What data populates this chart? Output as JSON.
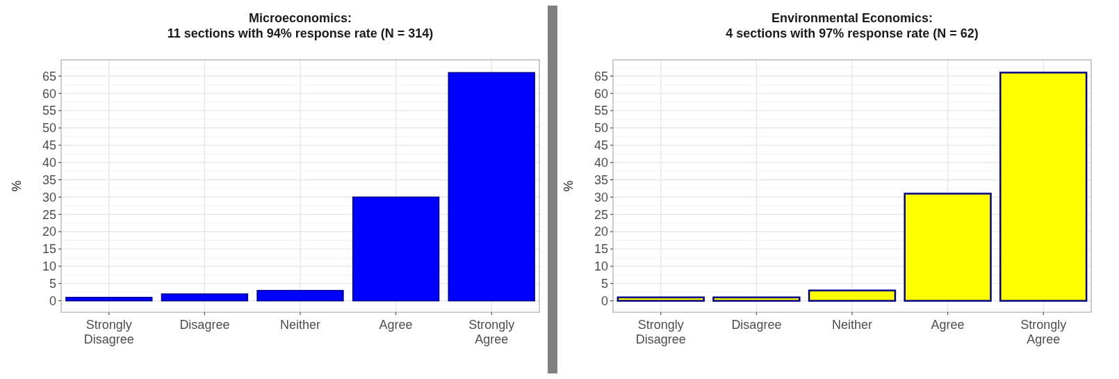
{
  "chart_data": [
    {
      "type": "bar",
      "title": "Microeconomics:\n11 sections with 94% response rate (N = 314)",
      "ylabel": "%",
      "categories": [
        "Strongly\nDisagree",
        "Disagree",
        "Neither",
        "Agree",
        "Strongly\nAgree"
      ],
      "values": [
        1,
        2,
        3,
        30,
        66
      ],
      "color": "#0000ff",
      "ylim": [
        -3.3,
        69.7
      ],
      "yticks": [
        0,
        5,
        10,
        15,
        20,
        25,
        30,
        35,
        40,
        45,
        50,
        55,
        60,
        65
      ],
      "grid": true
    },
    {
      "type": "bar",
      "title": "Environmental Economics:\n4 sections with 97% response rate (N = 62)",
      "ylabel": "%",
      "categories": [
        "Strongly\nDisagree",
        "Disagree",
        "Neither",
        "Agree",
        "Strongly\nAgree"
      ],
      "values": [
        1,
        1,
        3,
        31,
        66
      ],
      "color": "#ffff00",
      "ylim": [
        -3.3,
        69.7
      ],
      "yticks": [
        0,
        5,
        10,
        15,
        20,
        25,
        30,
        35,
        40,
        45,
        50,
        55,
        60,
        65
      ],
      "grid": true
    }
  ]
}
